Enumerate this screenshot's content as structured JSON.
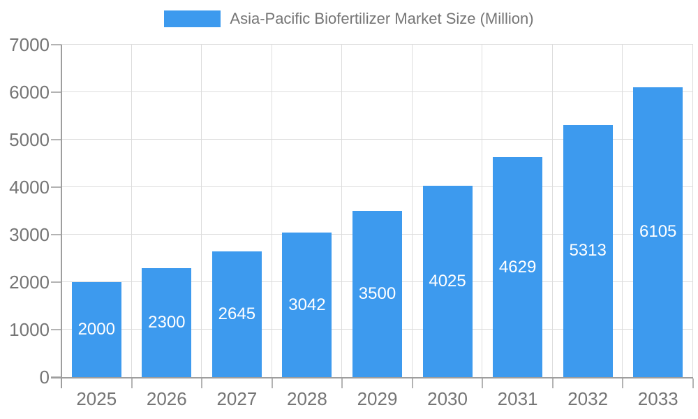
{
  "legend": {
    "label": "Asia-Pacific Biofertilizer Market Size (Million)"
  },
  "chart_data": {
    "type": "bar",
    "title": "Asia-Pacific Biofertilizer Market Size (Million)",
    "series_name": "Asia-Pacific Biofertilizer Market Size (Million)",
    "categories": [
      "2025",
      "2026",
      "2027",
      "2028",
      "2029",
      "2030",
      "2031",
      "2032",
      "2033"
    ],
    "values": [
      2000,
      2300,
      2645,
      3042,
      3500,
      4025,
      4629,
      5313,
      6105
    ],
    "value_labels": [
      "2000",
      "2300",
      "2645",
      "3042",
      "3500",
      "4025",
      "4629",
      "5313",
      "6105"
    ],
    "xlabel": "",
    "ylabel": "",
    "ylim": [
      0,
      7000
    ],
    "ytick_step": 1000,
    "yticks": [
      0,
      1000,
      2000,
      3000,
      4000,
      5000,
      6000,
      7000
    ],
    "grid": true,
    "legend_position": "top-center",
    "value_label_position": "inside-center"
  },
  "colors": {
    "bar": "#3d9aee",
    "value_label": "#ffffff",
    "axis_text": "#757575",
    "legend_text": "#757575",
    "gridline": "#dcdcdc",
    "tick": "#b3b3b3",
    "axis_line": "#9e9e9e",
    "background": "#ffffff"
  }
}
